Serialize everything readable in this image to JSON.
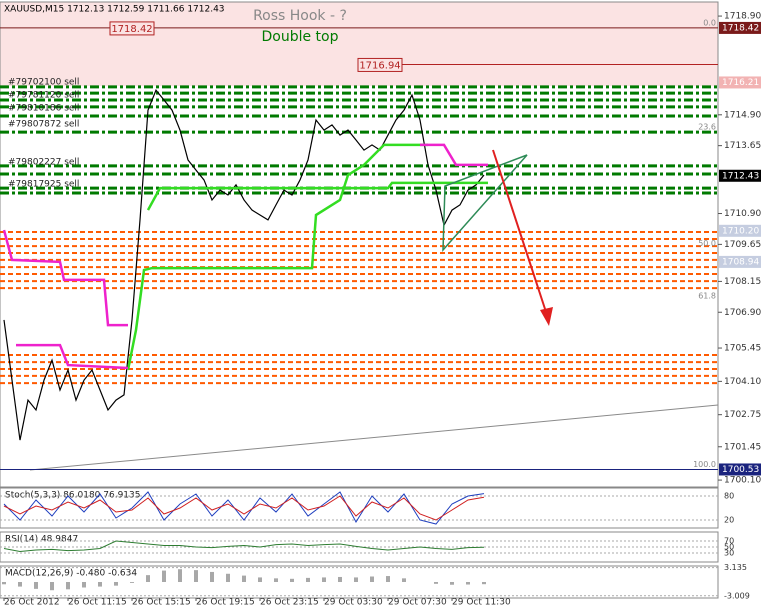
{
  "chart_data": [
    {
      "type": "line",
      "title": "XAUUSD,M15  1712.13 1712.59 1711.66 1712.43",
      "subtitle": "Ross Hook - ?",
      "pattern_label": "Double top",
      "xlim": [
        -1,
        178.5
      ],
      "xticks": [
        {
          "value": 0,
          "label": "26 Oct 2012"
        },
        {
          "value": 16,
          "label": "26 Oct 11:15"
        },
        {
          "value": 32,
          "label": "26 Oct 15:15"
        },
        {
          "value": 48,
          "label": "26 Oct 19:15"
        },
        {
          "value": 64,
          "label": "26 Oct 23:15"
        },
        {
          "value": 80,
          "label": "29 Oct 03:30"
        },
        {
          "value": 96,
          "label": "29 Oct 07:30"
        },
        {
          "value": 112,
          "label": "29 Oct 11:30"
        }
      ],
      "ylim": [
        1699.82,
        1719.47
      ],
      "yticks": [
        {
          "value": 1718.9,
          "label": "1718.90"
        },
        {
          "value": 1714.9,
          "label": "1714.90"
        },
        {
          "value": 1713.65,
          "label": "1713.65"
        },
        {
          "value": 1710.9,
          "label": "1710.90"
        },
        {
          "value": 1709.65,
          "label": "1709.65"
        },
        {
          "value": 1708.15,
          "label": "1708.15"
        },
        {
          "value": 1706.9,
          "label": "1706.90"
        },
        {
          "value": 1705.45,
          "label": "1705.45"
        },
        {
          "value": 1704.1,
          "label": "1704.10"
        },
        {
          "value": 1702.75,
          "label": "1702.75"
        },
        {
          "value": 1701.45,
          "label": "1701.45"
        },
        {
          "value": 1700.1,
          "label": "1700.10"
        }
      ],
      "price_tags": [
        {
          "value": 1718.42,
          "label": "1718.42",
          "color": "#7a1a1a",
          "line": true
        },
        {
          "value": 1716.21,
          "label": "1716.21",
          "color": "#f2b3b3",
          "line": false
        },
        {
          "value": 1712.43,
          "label": "1712.43",
          "color": "#000000",
          "line": false
        },
        {
          "value": 1710.2,
          "label": "1710.20",
          "color": "#c5cde0",
          "line": false
        },
        {
          "value": 1708.94,
          "label": "1708.94",
          "color": "#c5cde0",
          "line": false
        },
        {
          "value": 1700.53,
          "label": "1700.53",
          "color": "#1a237e",
          "line": true
        }
      ],
      "annotations": [
        {
          "label": "1718.42",
          "value": 1718.42,
          "x": 32,
          "line": false
        },
        {
          "label": "1716.94",
          "value": 1716.94,
          "x": 94,
          "line": true
        }
      ],
      "orders": [
        {
          "label": "#79702100 sell",
          "value": 1716.23
        },
        {
          "label": "#79781120 sell",
          "value": 1715.7
        },
        {
          "label": "#79810186 sell",
          "value": 1715.17
        },
        {
          "label": "#79807872 sell",
          "value": 1714.53
        },
        {
          "label": "#79802227 sell",
          "value": 1712.99
        },
        {
          "label": "#79817925 sell",
          "value": 1712.1
        }
      ],
      "fib": {
        "high": 1718.42,
        "low": 1700.53,
        "levels": [
          {
            "value": 0,
            "label": "0.0"
          },
          {
            "value": 23.6,
            "label": "23.6"
          },
          {
            "value": 50,
            "label": "50.0"
          },
          {
            "value": 61.8,
            "label": "61.8"
          },
          {
            "value": 100,
            "label": "100.0"
          }
        ]
      },
      "levels": {
        "green": [
          1716.03,
          1715.78,
          1715.5,
          1715.22,
          1714.85,
          1714.2,
          1712.83,
          1712.5,
          1711.93,
          1711.73
        ],
        "green_color": "#007a00",
        "orange": [
          1710.15,
          1709.87,
          1709.58,
          1709.3,
          1709.02,
          1708.73,
          1708.45,
          1708.16,
          1707.88,
          1705.17,
          1704.88,
          1704.6,
          1704.32,
          1704.03
        ],
        "orange_color": "#ff5a00"
      },
      "series": [
        {
          "color": "#000000",
          "x": [
            0,
            2,
            4,
            6,
            8,
            10,
            12,
            14,
            16,
            18,
            20,
            22,
            24,
            26,
            28,
            30,
            32,
            34,
            36,
            38,
            40,
            42,
            44,
            46,
            48,
            50,
            52,
            54,
            56,
            58,
            60,
            62,
            64,
            66,
            68,
            70,
            72,
            74,
            76,
            78,
            80,
            82,
            84,
            86,
            88,
            90,
            92,
            94,
            96,
            98,
            100,
            102,
            104,
            106,
            108,
            110,
            112,
            114,
            116,
            118,
            120
          ],
          "values": [
            1706.59,
            1704.15,
            1701.72,
            1703.34,
            1702.94,
            1704.15,
            1704.96,
            1703.75,
            1704.56,
            1703.34,
            1704.15,
            1704.56,
            1703.75,
            1702.94,
            1703.34,
            1703.55,
            1706.59,
            1710.64,
            1715.09,
            1715.9,
            1715.5,
            1715.09,
            1714.28,
            1713.07,
            1712.66,
            1712.26,
            1711.45,
            1711.85,
            1711.65,
            1712.06,
            1711.45,
            1711.04,
            1710.84,
            1710.64,
            1711.25,
            1711.85,
            1711.65,
            1712.26,
            1713.07,
            1714.69,
            1714.28,
            1714.49,
            1714.08,
            1714.28,
            1713.88,
            1713.47,
            1713.68,
            1713.47,
            1714.08,
            1714.69,
            1715.09,
            1715.7,
            1714.69,
            1712.87,
            1711.85,
            1710.43,
            1711.04,
            1711.25,
            1711.85,
            1712.06,
            1712.46
          ]
        },
        {
          "color": "#33dd22",
          "x": [
            31,
            33,
            35,
            37,
            77,
            78,
            84,
            86,
            90,
            95,
            106
          ],
          "values": [
            1704.56,
            1706.18,
            1708.61,
            1708.69,
            1708.69,
            1710.84,
            1711.45,
            1712.46,
            1712.87,
            1713.68,
            1713.68
          ]
        },
        {
          "color": "#33dd22",
          "x": [
            36,
            39,
            96,
            97,
            121
          ],
          "values": [
            1711.04,
            1711.93,
            1711.93,
            1712.14,
            1712.14
          ]
        },
        {
          "color": "#ee22cc",
          "x": [
            0,
            2,
            14,
            15,
            25,
            26,
            31
          ],
          "values": [
            1710.23,
            1709.02,
            1708.94,
            1708.21,
            1708.21,
            1706.38,
            1706.38
          ]
        },
        {
          "color": "#ee22cc",
          "x": [
            3,
            14,
            16,
            31
          ],
          "values": [
            1705.57,
            1705.57,
            1704.76,
            1704.64
          ]
        },
        {
          "color": "#ee22cc",
          "x": [
            104,
            110,
            113,
            121
          ],
          "values": [
            1713.68,
            1713.68,
            1712.87,
            1712.87
          ]
        }
      ]
    },
    {
      "type": "line",
      "title": "Stoch(5,3,3) 86.0180 76.9135",
      "ylim": [
        0,
        100
      ],
      "yticks": [
        80,
        20
      ],
      "series": [
        {
          "color": "#1f3fbf",
          "values": [
            60,
            20,
            70,
            30,
            80,
            40,
            85,
            25,
            50,
            90,
            20,
            60,
            85,
            30,
            70,
            20,
            75,
            40,
            85,
            30,
            60,
            90,
            15,
            80,
            40,
            85,
            20,
            10,
            60,
            80,
            86
          ]
        },
        {
          "color": "#d02020",
          "values": [
            55,
            35,
            55,
            45,
            65,
            50,
            70,
            40,
            45,
            75,
            35,
            50,
            75,
            45,
            60,
            35,
            60,
            50,
            75,
            45,
            55,
            80,
            30,
            65,
            50,
            75,
            35,
            20,
            45,
            70,
            77
          ]
        }
      ]
    },
    {
      "type": "line",
      "title": "RSI(14) 48.9847",
      "ylim": [
        0,
        100
      ],
      "yticks": [
        70,
        50,
        30
      ],
      "series": [
        {
          "color": "#2e7d32",
          "values": [
            45,
            35,
            40,
            42,
            38,
            40,
            45,
            70,
            65,
            60,
            55,
            55,
            50,
            48,
            52,
            55,
            50,
            58,
            60,
            55,
            58,
            60,
            52,
            45,
            40,
            45,
            50,
            45,
            42,
            48,
            49
          ]
        }
      ]
    },
    {
      "type": "bar",
      "title": "MACD(12,26,9) -0.480 -0.634",
      "ylim": [
        -3.5,
        3.5
      ],
      "yticks": [
        3.135,
        -3.009
      ],
      "color": "#a8a8a8",
      "values": [
        -0.5,
        -1,
        -1.5,
        -1.8,
        -1.6,
        -1.2,
        -1,
        -0.8,
        -0.2,
        1.5,
        2.5,
        2.8,
        2.6,
        2.2,
        1.8,
        1.4,
        1,
        0.8,
        0.7,
        0.9,
        1,
        1.1,
        1,
        1.2,
        1.3,
        0.8,
        0,
        -0.4,
        -0.6,
        -0.55,
        -0.48
      ]
    }
  ]
}
